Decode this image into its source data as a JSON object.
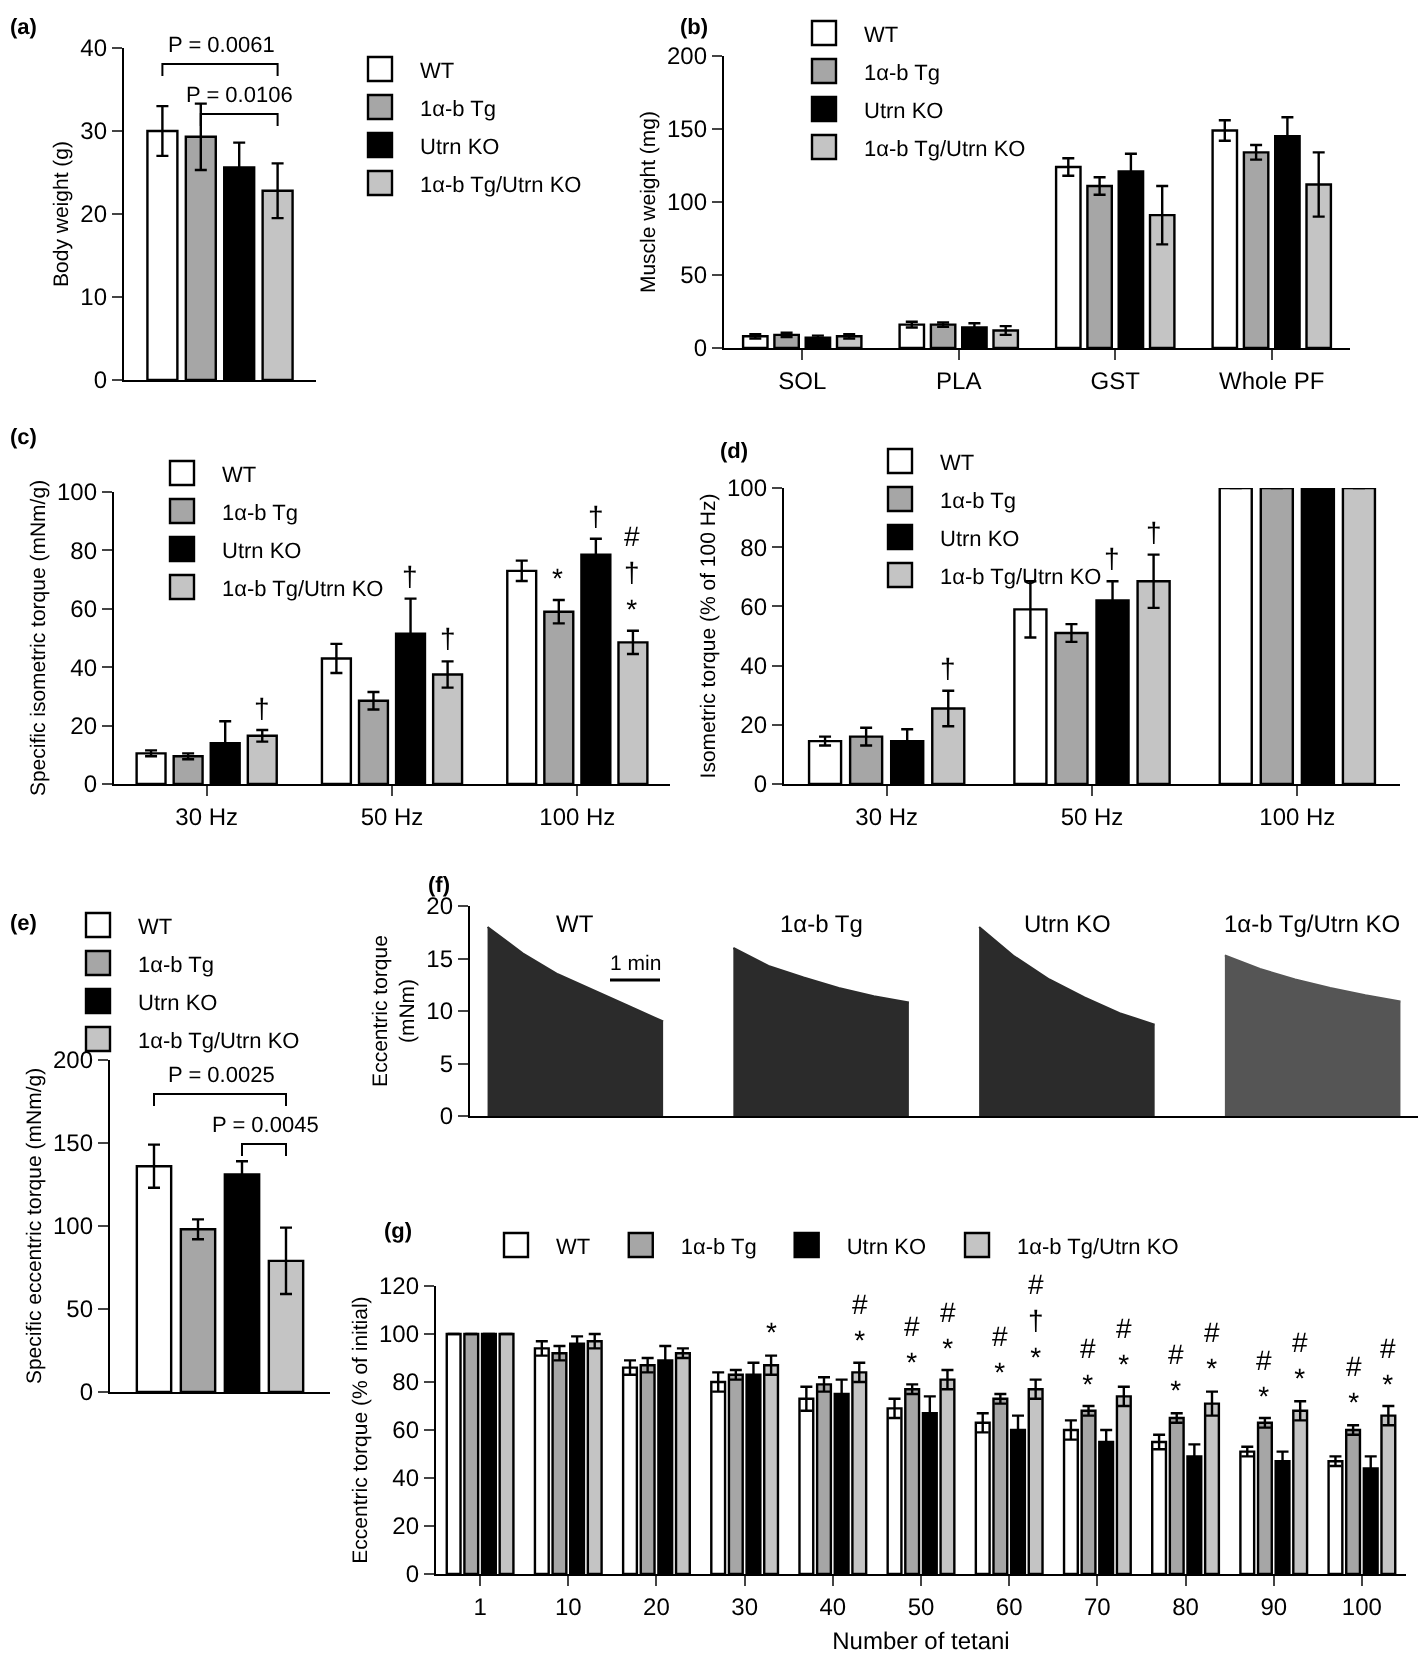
{
  "chart_data": [
    {
      "type": "bar",
      "title": "(a)",
      "ylabel": "Body weight (g)",
      "categories": [
        null
      ],
      "ylim": [
        0,
        40
      ],
      "yticks": [
        0,
        10,
        20,
        30,
        40
      ],
      "legend": "right",
      "series": [
        {
          "name": "WT",
          "color": "#ffffff",
          "values": [
            30.0
          ],
          "errors": [
            3.0
          ]
        },
        {
          "name": "1α-b Tg",
          "color": "#a6a6a6",
          "values": [
            29.3
          ],
          "errors": [
            4.0
          ]
        },
        {
          "name": "Utrn KO",
          "color": "#000000",
          "values": [
            25.6
          ],
          "errors": [
            3.0
          ]
        },
        {
          "name": "1α-b Tg/Utrn KO",
          "color": "#c4c4c4",
          "values": [
            22.8
          ],
          "errors": [
            3.3
          ]
        }
      ],
      "annotations": [
        "P = 0.0061",
        "P = 0.0106"
      ]
    },
    {
      "type": "bar",
      "title": "(b)",
      "ylabel": "Muscle weight (mg)",
      "categories": [
        "SOL",
        "PLA",
        "GST",
        "Whole PF"
      ],
      "ylim": [
        0,
        200
      ],
      "yticks": [
        0,
        50,
        100,
        150,
        200
      ],
      "legend": "top left",
      "series": [
        {
          "name": "WT",
          "color": "#ffffff",
          "values": [
            8,
            16,
            124,
            149
          ],
          "errors": [
            1.5,
            2,
            6,
            7
          ]
        },
        {
          "name": "1α-b Tg",
          "color": "#a6a6a6",
          "values": [
            9,
            16,
            111,
            134
          ],
          "errors": [
            1.5,
            1.5,
            6,
            5
          ]
        },
        {
          "name": "Utrn KO",
          "color": "#000000",
          "values": [
            7,
            14,
            121,
            145
          ],
          "errors": [
            1.5,
            3,
            12,
            13
          ]
        },
        {
          "name": "1α-b Tg/Utrn KO",
          "color": "#c4c4c4",
          "values": [
            8,
            12,
            91,
            112
          ],
          "errors": [
            1.5,
            3,
            20,
            22
          ]
        }
      ]
    },
    {
      "type": "bar",
      "title": "(c)",
      "ylabel": "Specific isometric torque (mNm/g)",
      "categories": [
        "30 Hz",
        "50 Hz",
        "100 Hz"
      ],
      "ylim": [
        0,
        100
      ],
      "yticks": [
        0,
        20,
        40,
        60,
        80,
        100
      ],
      "legend": "top left",
      "series": [
        {
          "name": "WT",
          "color": "#ffffff",
          "values": [
            10.5,
            43,
            73
          ],
          "errors": [
            1,
            5,
            3.5
          ]
        },
        {
          "name": "1α-b Tg",
          "color": "#a6a6a6",
          "values": [
            9.5,
            28.5,
            59
          ],
          "errors": [
            1,
            3,
            4
          ],
          "value_labels": [
            null,
            null,
            "*"
          ]
        },
        {
          "name": "Utrn KO",
          "color": "#000000",
          "values": [
            14,
            51.5,
            78.5
          ],
          "errors": [
            7.5,
            12,
            5.5
          ],
          "value_labels": [
            null,
            "†",
            "†"
          ]
        },
        {
          "name": "1α-b Tg/Utrn KO",
          "color": "#c4c4c4",
          "values": [
            16.5,
            37.5,
            48.5
          ],
          "errors": [
            2,
            4.5,
            4
          ],
          "value_labels": [
            "†",
            "†",
            "#\n†\n*"
          ]
        }
      ]
    },
    {
      "type": "bar",
      "title": "(d)",
      "ylabel": "Isometric torque (% of 100 Hz)",
      "categories": [
        "30 Hz",
        "50 Hz",
        "100 Hz"
      ],
      "ylim": [
        0,
        100
      ],
      "yticks": [
        0,
        20,
        40,
        60,
        80,
        100
      ],
      "legend": "top left",
      "series": [
        {
          "name": "WT",
          "color": "#ffffff",
          "values": [
            14.5,
            59,
            100
          ],
          "errors": [
            1.5,
            9.5,
            0
          ]
        },
        {
          "name": "1α-b Tg",
          "color": "#a6a6a6",
          "values": [
            16,
            51,
            100
          ],
          "errors": [
            3,
            3,
            0
          ]
        },
        {
          "name": "Utrn KO",
          "color": "#000000",
          "values": [
            14.5,
            62,
            100
          ],
          "errors": [
            4,
            6.5,
            0
          ],
          "value_labels": [
            null,
            "†",
            null
          ]
        },
        {
          "name": "1α-b Tg/Utrn KO",
          "color": "#c4c4c4",
          "values": [
            25.5,
            68.5,
            100
          ],
          "errors": [
            6,
            9,
            0
          ],
          "value_labels": [
            "†",
            "†",
            null
          ]
        }
      ]
    },
    {
      "type": "bar",
      "title": "(e)",
      "ylabel": "Specific eccentric torque (mNm/g)",
      "categories": [
        null
      ],
      "ylim": [
        0,
        200
      ],
      "yticks": [
        0,
        50,
        100,
        150,
        200
      ],
      "legend": "top left",
      "series": [
        {
          "name": "WT",
          "color": "#ffffff",
          "values": [
            136
          ],
          "errors": [
            13
          ]
        },
        {
          "name": "1α-b Tg",
          "color": "#a6a6a6",
          "values": [
            98
          ],
          "errors": [
            6
          ]
        },
        {
          "name": "Utrn KO",
          "color": "#000000",
          "values": [
            131
          ],
          "errors": [
            8
          ]
        },
        {
          "name": "1α-b Tg/Utrn KO",
          "color": "#c4c4c4",
          "values": [
            79
          ],
          "errors": [
            20
          ]
        }
      ],
      "annotations": [
        "P = 0.0025",
        "P = 0.0045"
      ]
    },
    {
      "type": "area",
      "title": "(f)",
      "ylabel": "Eccentric torque\n(mNm)",
      "categories": [
        null,
        null,
        null,
        null,
        null,
        null,
        null,
        null,
        null,
        null,
        null,
        null,
        null,
        null,
        null,
        null,
        null,
        null,
        null,
        null,
        null,
        null,
        null,
        null,
        null,
        null,
        null
      ],
      "ylim": [
        0,
        20
      ],
      "yticks": [
        0,
        5,
        10,
        15,
        20
      ],
      "series": [
        {
          "name": "WT",
          "color": "#2b2b2b",
          "values": [
            18,
            15.5,
            13.5,
            12,
            10.5,
            9,
            null,
            null,
            null,
            null,
            null,
            null,
            null,
            null,
            null,
            null,
            null,
            null,
            null,
            null,
            null,
            null,
            null,
            null,
            null,
            null,
            null
          ]
        },
        {
          "name": "1α-b Tg",
          "color": "#2b2b2b",
          "values": [
            null,
            null,
            null,
            null,
            null,
            null,
            null,
            16,
            14.3,
            13.2,
            12.2,
            11.4,
            10.8,
            null,
            null,
            null,
            null,
            null,
            null,
            null,
            null,
            null,
            null,
            null,
            null,
            null,
            null
          ]
        },
        {
          "name": "Utrn KO",
          "color": "#2b2b2b",
          "values": [
            null,
            null,
            null,
            null,
            null,
            null,
            null,
            null,
            null,
            null,
            null,
            null,
            null,
            null,
            18,
            15.2,
            13,
            11.3,
            9.8,
            8.7,
            null,
            null,
            null,
            null,
            null,
            null,
            null
          ]
        },
        {
          "name": "1α-b Tg/Utrn KO",
          "color": "#555555",
          "values": [
            null,
            null,
            null,
            null,
            null,
            null,
            null,
            null,
            null,
            null,
            null,
            null,
            null,
            null,
            null,
            null,
            null,
            null,
            null,
            null,
            null,
            15.3,
            14,
            13,
            12.2,
            11.5,
            10.9
          ]
        }
      ],
      "annotations": [
        "1 min"
      ]
    },
    {
      "type": "bar",
      "title": "(g)",
      "xlabel": "Number of tetani",
      "ylabel": "Eccentric torque (% of initial)",
      "categories": [
        "1",
        "10",
        "20",
        "30",
        "40",
        "50",
        "60",
        "70",
        "80",
        "90",
        "100"
      ],
      "ylim": [
        0,
        120
      ],
      "yticks": [
        0,
        20,
        40,
        60,
        80,
        100,
        120
      ],
      "legend": "top",
      "series": [
        {
          "name": "WT",
          "color": "#ffffff",
          "values": [
            100,
            94,
            86,
            80,
            73,
            69,
            63,
            60,
            55,
            51,
            47
          ],
          "errors": [
            0,
            3,
            3,
            4,
            5,
            4,
            4,
            4,
            3,
            2,
            2
          ]
        },
        {
          "name": "1α-b Tg",
          "color": "#a6a6a6",
          "values": [
            100,
            92,
            87,
            83,
            79,
            77,
            73,
            68,
            65,
            63,
            60
          ],
          "errors": [
            0,
            3,
            3,
            2,
            3,
            2,
            2,
            2,
            2,
            2,
            2
          ],
          "value_labels": [
            null,
            null,
            null,
            null,
            null,
            "#\n*",
            "#\n*",
            "#\n*",
            "#\n*",
            "#\n*",
            "#\n*"
          ]
        },
        {
          "name": "Utrn KO",
          "color": "#000000",
          "values": [
            100,
            96,
            89,
            83,
            75,
            67,
            60,
            55,
            49,
            47,
            44
          ],
          "errors": [
            0,
            3,
            6,
            5,
            6,
            7,
            6,
            5,
            5,
            4,
            5
          ]
        },
        {
          "name": "1α-b Tg/Utrn KO",
          "color": "#c4c4c4",
          "values": [
            100,
            97,
            92,
            87,
            84,
            81,
            77,
            74,
            71,
            68,
            66
          ],
          "errors": [
            0,
            3,
            2,
            4,
            4,
            4,
            4,
            4,
            5,
            4,
            4
          ],
          "value_labels": [
            null,
            null,
            null,
            "*",
            "#\n*",
            "#\n*",
            "#\n†\n*",
            "#\n*",
            "#\n*",
            "#\n*",
            "#\n*"
          ]
        }
      ]
    }
  ]
}
